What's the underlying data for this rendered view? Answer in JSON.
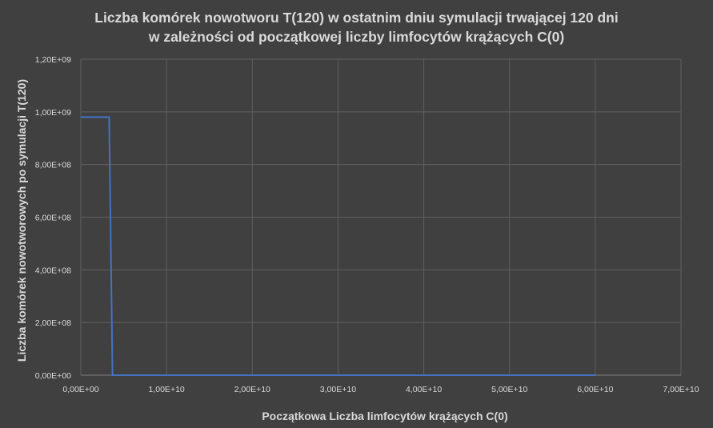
{
  "chart_data": {
    "type": "line",
    "title_line1": "Liczba komórek nowotworu T(120) w ostatnim dniu symulacji trwającej 120 dni",
    "title_line2": "w zależności od początkowej liczby limfocytów krążących C(0)",
    "xlabel": "Początkowa Liczba limfocytów krążących C(0)",
    "ylabel": "Liczba komórek nowotworowych po symulacji T(120)",
    "xlim": [
      0,
      70000000000
    ],
    "ylim": [
      0,
      1200000000
    ],
    "x_ticks": [
      0,
      10000000000,
      20000000000,
      30000000000,
      40000000000,
      50000000000,
      60000000000,
      70000000000
    ],
    "x_tick_labels": [
      "0,00E+00",
      "1,00E+10",
      "2,00E+10",
      "3,00E+10",
      "4,00E+10",
      "5,00E+10",
      "6,00E+10",
      "7,00E+10"
    ],
    "y_ticks": [
      0,
      200000000,
      400000000,
      600000000,
      800000000,
      1000000000,
      1200000000
    ],
    "y_tick_labels": [
      "0,00E+00",
      "2,00E+08",
      "4,00E+08",
      "6,00E+08",
      "8,00E+08",
      "1,00E+09",
      "1,20E+09"
    ],
    "grid": true,
    "legend": "none",
    "series": [
      {
        "color": "#4472c4",
        "x": [
          0,
          3300000000,
          3700000000,
          60000000000
        ],
        "y": [
          980000000,
          980000000,
          0,
          0
        ]
      }
    ]
  }
}
